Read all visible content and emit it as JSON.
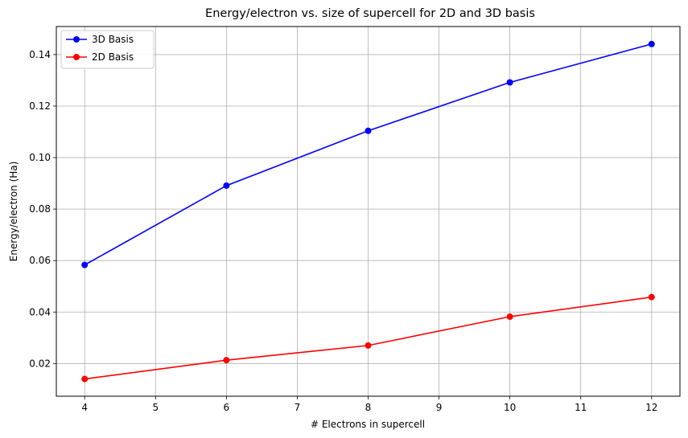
{
  "chart_data": {
    "type": "line",
    "title": "Energy/electron vs. size of supercell for 2D and 3D basis",
    "xlabel": "# Electrons in supercell",
    "ylabel": "Energy/electron (Ha)",
    "xlim": [
      3.6,
      12.4
    ],
    "ylim": [
      0.0073,
      0.1509
    ],
    "xticks": [
      4,
      5,
      6,
      7,
      8,
      9,
      10,
      11,
      12
    ],
    "yticks": [
      0.02,
      0.04,
      0.06,
      0.08,
      0.1,
      0.12,
      0.14
    ],
    "ytick_labels": [
      "0.02",
      "0.04",
      "0.06",
      "0.08",
      "0.10",
      "0.12",
      "0.14"
    ],
    "grid": true,
    "legend_position": "top-left",
    "x": [
      4,
      6,
      8,
      10,
      12
    ],
    "series": [
      {
        "name": "3D Basis",
        "color": "#0000ff",
        "values": [
          0.0583,
          0.0891,
          0.1104,
          0.1292,
          0.1441
        ]
      },
      {
        "name": "2D Basis",
        "color": "#ff0000",
        "values": [
          0.014,
          0.0213,
          0.027,
          0.0382,
          0.0458
        ]
      }
    ]
  }
}
